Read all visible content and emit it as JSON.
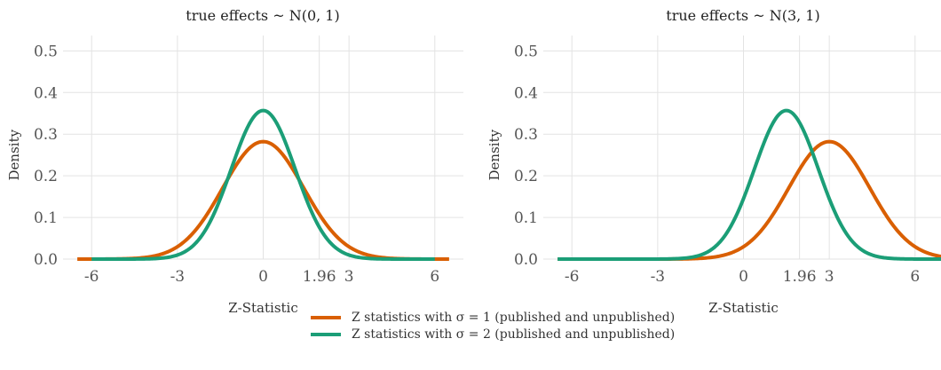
{
  "colors": {
    "series1": "#D95F02",
    "series2": "#1B9E77"
  },
  "chart_data": [
    {
      "type": "line",
      "title": "true effects ~ N(0, 1)",
      "xlabel": "Z-Statistic",
      "ylabel": "Density",
      "xlim": [
        -7,
        7
      ],
      "ylim": [
        0,
        0.52
      ],
      "x_ticks": [
        -6,
        -3,
        0,
        1.96,
        3,
        6
      ],
      "x_tick_labels": [
        "-6",
        "-3",
        "0",
        "1.96",
        "3",
        "6"
      ],
      "y_ticks": [
        0,
        0.1,
        0.2,
        0.3,
        0.4,
        0.5
      ],
      "y_tick_labels": [
        "0.0",
        "0.1",
        "0.2",
        "0.3",
        "0.4",
        "0.5"
      ],
      "grid": true,
      "series": [
        {
          "name": "Z statistics with σ = 1 (published and unpublished)",
          "distribution": "normal",
          "mean": 0,
          "sd": 1.414,
          "x_range": [
            -6.5,
            6.5
          ]
        },
        {
          "name": "Z statistics with σ = 2 (published and unpublished)",
          "distribution": "normal",
          "mean": 0,
          "sd": 1.118,
          "x_range": [
            -6.0,
            6.0
          ]
        }
      ]
    },
    {
      "type": "line",
      "title": "true effects ~ N(3, 1)",
      "xlabel": "Z-Statistic",
      "ylabel": "Density",
      "xlim": [
        -7,
        7
      ],
      "ylim": [
        0,
        0.52
      ],
      "x_ticks": [
        -6,
        -3,
        0,
        1.96,
        3,
        6
      ],
      "x_tick_labels": [
        "-6",
        "-3",
        "0",
        "1.96",
        "3",
        "6"
      ],
      "y_ticks": [
        0,
        0.1,
        0.2,
        0.3,
        0.4,
        0.5
      ],
      "y_tick_labels": [
        "0.0",
        "0.1",
        "0.2",
        "0.3",
        "0.4",
        "0.5"
      ],
      "grid": true,
      "series": [
        {
          "name": "Z statistics with σ = 1 (published and unpublished)",
          "distribution": "normal",
          "mean": 3,
          "sd": 1.414,
          "x_range": [
            -6.5,
            7.0
          ]
        },
        {
          "name": "Z statistics with σ = 2 (published and unpublished)",
          "distribution": "normal",
          "mean": 1.5,
          "sd": 1.118,
          "x_range": [
            -6.5,
            7.0
          ]
        }
      ]
    }
  ],
  "legend": {
    "placement": "bottom-center",
    "items": [
      {
        "label": "Z statistics with σ = 1 (published and unpublished)"
      },
      {
        "label": "Z statistics with σ = 2 (published and unpublished)"
      }
    ]
  }
}
